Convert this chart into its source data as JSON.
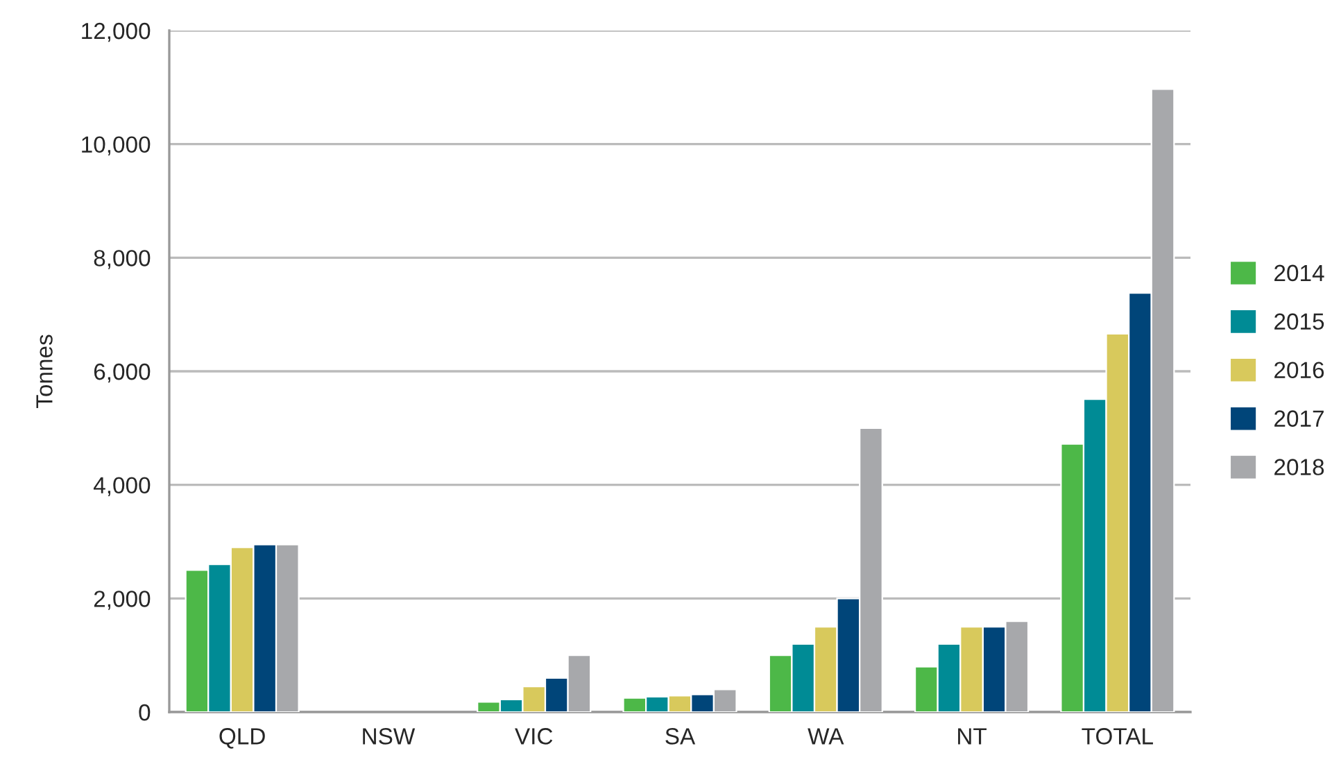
{
  "chart_data": {
    "type": "bar",
    "ylabel": "Tonnes",
    "categories": [
      "QLD",
      "NSW",
      "VIC",
      "SA",
      "WA",
      "NT",
      "TOTAL"
    ],
    "series": [
      {
        "name": "2014",
        "color": "#4db848",
        "values": [
          2500,
          null,
          180,
          250,
          1000,
          800,
          4720
        ]
      },
      {
        "name": "2015",
        "color": "#008b95",
        "values": [
          2600,
          null,
          220,
          270,
          1200,
          1200,
          5510
        ]
      },
      {
        "name": "2016",
        "color": "#d8c95c",
        "values": [
          2900,
          null,
          450,
          290,
          1500,
          1500,
          6660
        ]
      },
      {
        "name": "2017",
        "color": "#004579",
        "values": [
          2950,
          null,
          600,
          310,
          2000,
          1500,
          7380
        ]
      },
      {
        "name": "2018",
        "color": "#a7a8ab",
        "values": [
          2950,
          null,
          1000,
          400,
          5000,
          1600,
          10970
        ]
      }
    ],
    "ylim": [
      0,
      12000
    ],
    "yticks": [
      {
        "value": 0,
        "label": "0"
      },
      {
        "value": 2000,
        "label": "2,000"
      },
      {
        "value": 4000,
        "label": "4,000"
      },
      {
        "value": 6000,
        "label": "6,000"
      },
      {
        "value": 8000,
        "label": "8,000"
      },
      {
        "value": 10000,
        "label": "10,000"
      },
      {
        "value": 12000,
        "label": "12,000"
      }
    ],
    "grid": "y",
    "legend": "right"
  }
}
